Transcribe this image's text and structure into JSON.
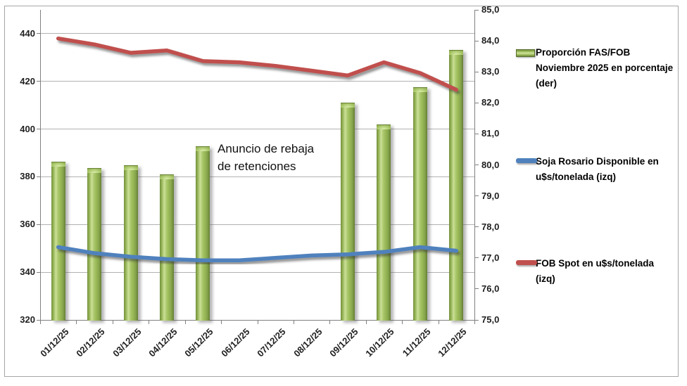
{
  "chart_data": {
    "type": "combo",
    "title": "",
    "categories": [
      "01/12/25",
      "02/12/25",
      "03/12/25",
      "04/12/25",
      "05/12/25",
      "06/12/25",
      "07/12/25",
      "08/12/25",
      "09/12/25",
      "10/12/25",
      "11/12/25",
      "12/12/25"
    ],
    "series": [
      {
        "name": "Proporción FAS/FOB Noviembre 2025 en porcentaje (der)",
        "type": "bar",
        "axis": "right",
        "color": "#9BBB59",
        "values": [
          80.1,
          79.9,
          80.0,
          79.7,
          80.6,
          null,
          null,
          null,
          82.0,
          81.3,
          82.5,
          83.7
        ]
      },
      {
        "name": "Soja Rosario Disponible en u$s/tonelada (izq)",
        "type": "line",
        "axis": "left",
        "color": "#4F81BD",
        "values": [
          350.5,
          348,
          346.5,
          345.5,
          345,
          345,
          346,
          347,
          347.5,
          348.5,
          350.5,
          349
        ]
      },
      {
        "name": "FOB Spot en u$s/tonelada (izq)",
        "type": "line",
        "axis": "left",
        "color": "#C0504D",
        "values": [
          438,
          435.5,
          432,
          433,
          428.5,
          428,
          426.5,
          424.5,
          422.5,
          428,
          423.5,
          416.5
        ]
      }
    ],
    "left_axis": {
      "min": 320,
      "max": 450,
      "tick_step": 20,
      "tick_labels": [
        "320",
        "340",
        "360",
        "380",
        "400",
        "420",
        "440"
      ]
    },
    "right_axis": {
      "min": 75,
      "max": 85,
      "tick_step": 1,
      "tick_labels": [
        "75,0",
        "76,0",
        "77,0",
        "78,0",
        "79,0",
        "80,0",
        "81,0",
        "82,0",
        "83,0",
        "84,0",
        "85,0"
      ]
    },
    "grid": true,
    "legend_position": "right",
    "annotation": {
      "line1": "Anuncio de rebaja",
      "line2": "de retenciones"
    }
  },
  "legend": {
    "items": [
      {
        "label": "Proporción FAS/FOB Noviembre 2025 en porcentaje (der)",
        "color": "#9BBB59",
        "marker": "bar"
      },
      {
        "label": "Soja Rosario Disponible en u$s/tonelada (izq)",
        "color": "#4F81BD",
        "marker": "line"
      },
      {
        "label": "FOB Spot en u$s/tonelada (izq)",
        "color": "#C0504D",
        "marker": "line"
      }
    ]
  },
  "colors": {
    "bar_green": "#9BBB59",
    "line_blue": "#4F81BD",
    "line_red": "#C0504D",
    "gridline": "#B2B2B2",
    "axis": "#808080",
    "text": "#1F1F1F"
  }
}
